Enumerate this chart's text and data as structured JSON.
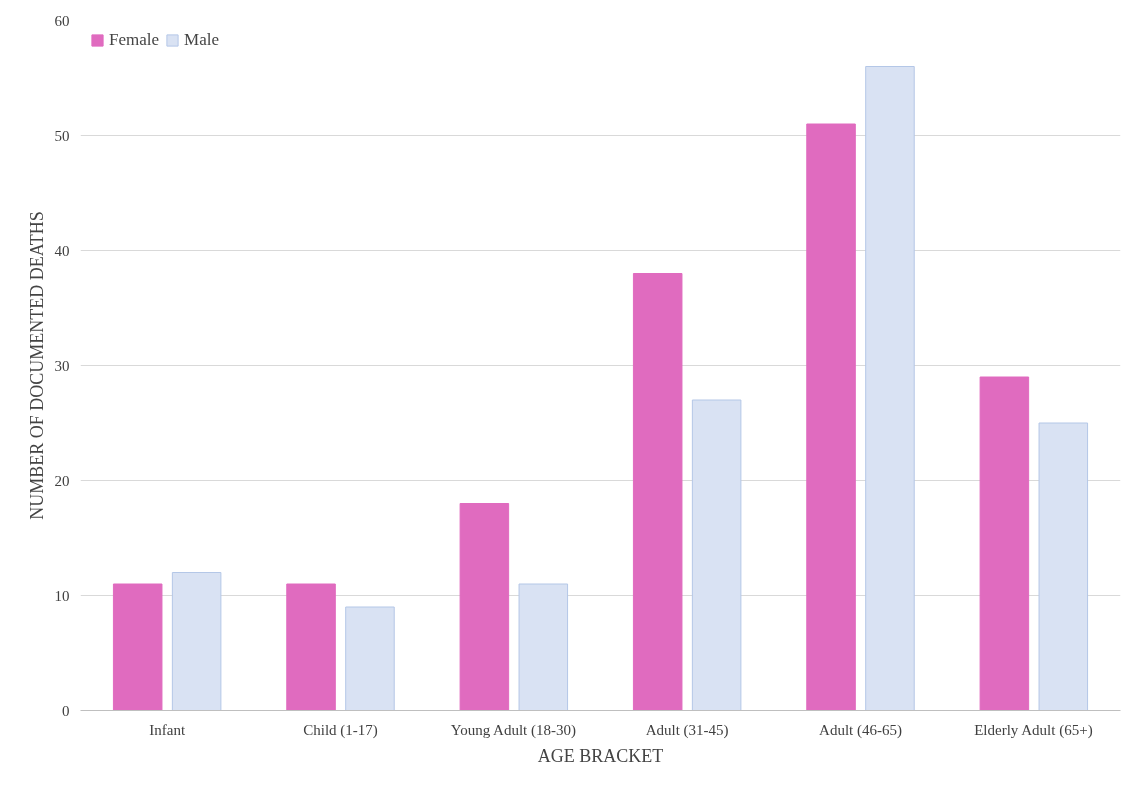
{
  "chart_data": {
    "type": "bar",
    "xlabel": "AGE BRACKET",
    "ylabel": "NUMBER OF DOCUMENTED DEATHS",
    "categories": [
      "Infant",
      "Child (1-17)",
      "Young Adult (18-30)",
      "Adult (31-45)",
      "Adult (46-65)",
      "Elderly Adult (65+)"
    ],
    "series": [
      {
        "name": "Female",
        "color": "#e06bbf",
        "values": [
          11,
          11,
          18,
          38,
          51,
          29
        ]
      },
      {
        "name": "Male",
        "color": "#d9e2f3",
        "values": [
          12,
          9,
          11,
          27,
          56,
          25
        ]
      }
    ],
    "ylim": [
      0,
      60
    ],
    "yticks": [
      0,
      10,
      20,
      30,
      40,
      50,
      60
    ],
    "grid": "y",
    "legend": "top left"
  }
}
